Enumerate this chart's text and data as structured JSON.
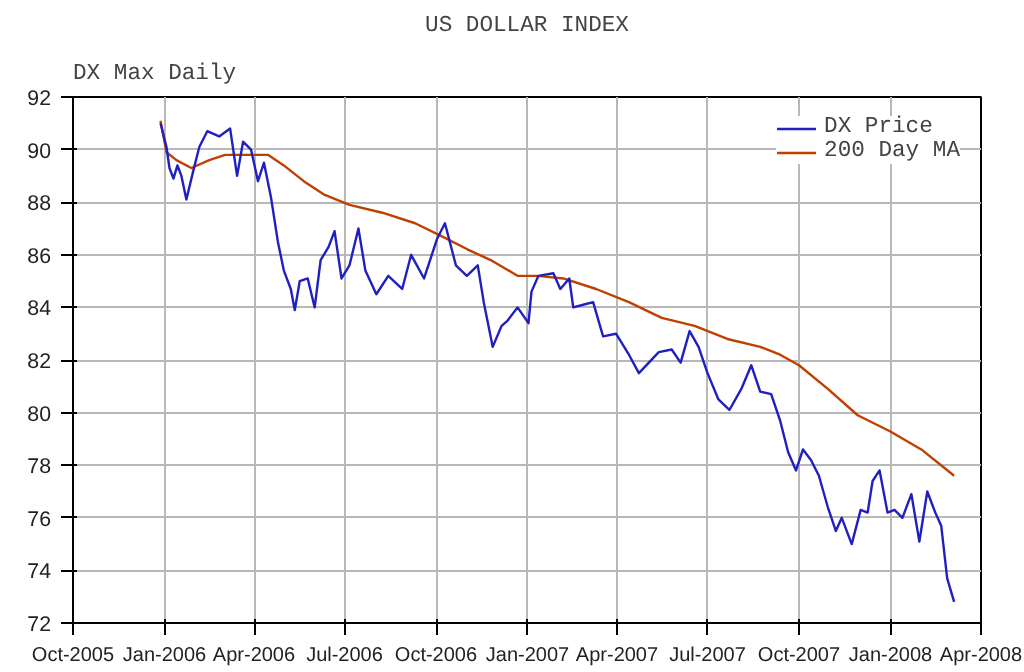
{
  "chart_data": {
    "type": "line",
    "title": "US DOLLAR INDEX",
    "annotations": [
      "DX Max Daily"
    ],
    "xlim": [
      "2005-10-01",
      "2008-04-01"
    ],
    "xticks": [
      {
        "value": "2005-10-01",
        "label": "Oct-2005"
      },
      {
        "value": "2006-01-01",
        "label": "Jan-2006"
      },
      {
        "value": "2006-04-01",
        "label": "Apr-2006"
      },
      {
        "value": "2006-07-01",
        "label": "Jul-2006"
      },
      {
        "value": "2006-10-01",
        "label": "Oct-2006"
      },
      {
        "value": "2007-01-01",
        "label": "Jan-2007"
      },
      {
        "value": "2007-04-01",
        "label": "Apr-2007"
      },
      {
        "value": "2007-07-01",
        "label": "Jul-2007"
      },
      {
        "value": "2007-10-01",
        "label": "Oct-2007"
      },
      {
        "value": "2008-01-01",
        "label": "Jan-2008"
      },
      {
        "value": "2008-04-01",
        "label": "Apr-2008"
      }
    ],
    "ylim": [
      72,
      92
    ],
    "yticks": [
      72,
      74,
      76,
      78,
      80,
      82,
      84,
      86,
      88,
      90,
      92
    ],
    "grid": true,
    "legend": "top right",
    "line_style": "solid",
    "marker": "none",
    "series": [
      {
        "name": "DX Price",
        "color": "#2020c0",
        "x": [
          "2005-12-28",
          "2006-01-03",
          "2006-01-06",
          "2006-01-10",
          "2006-01-14",
          "2006-01-18",
          "2006-01-23",
          "2006-01-30",
          "2006-02-05",
          "2006-02-13",
          "2006-02-25",
          "2006-03-08",
          "2006-03-15",
          "2006-03-21",
          "2006-03-29",
          "2006-04-05",
          "2006-04-11",
          "2006-04-18",
          "2006-04-25",
          "2006-05-01",
          "2006-05-08",
          "2006-05-12",
          "2006-05-17",
          "2006-05-25",
          "2006-06-01",
          "2006-06-07",
          "2006-06-15",
          "2006-06-21",
          "2006-06-28",
          "2006-07-06",
          "2006-07-15",
          "2006-07-22",
          "2006-08-02",
          "2006-08-14",
          "2006-08-28",
          "2006-09-06",
          "2006-09-19",
          "2006-10-02",
          "2006-10-10",
          "2006-10-21",
          "2006-11-01",
          "2006-11-12",
          "2006-11-18",
          "2006-11-27",
          "2006-12-06",
          "2006-12-12",
          "2006-12-22",
          "2007-01-02",
          "2007-01-05",
          "2007-01-12",
          "2007-01-27",
          "2007-02-03",
          "2007-02-12",
          "2007-02-16",
          "2007-02-26",
          "2007-03-08",
          "2007-03-18",
          "2007-03-31",
          "2007-04-13",
          "2007-04-23",
          "2007-05-03",
          "2007-05-13",
          "2007-05-26",
          "2007-06-04",
          "2007-06-13",
          "2007-06-22",
          "2007-07-01",
          "2007-07-12",
          "2007-07-23",
          "2007-08-04",
          "2007-08-14",
          "2007-08-23",
          "2007-09-03",
          "2007-09-12",
          "2007-09-20",
          "2007-09-28",
          "2007-10-05",
          "2007-10-13",
          "2007-10-21",
          "2007-10-30",
          "2007-11-07",
          "2007-11-13",
          "2007-11-23",
          "2007-12-02",
          "2007-12-09",
          "2007-12-14",
          "2007-12-21",
          "2007-12-29",
          "2008-01-05",
          "2008-01-13",
          "2008-01-22",
          "2008-01-30",
          "2008-02-07",
          "2008-02-15",
          "2008-02-21",
          "2008-02-27",
          "2008-03-05"
        ],
        "values": [
          91.0,
          90.1,
          89.3,
          88.9,
          89.4,
          89.0,
          88.1,
          89.2,
          90.1,
          90.7,
          90.5,
          90.8,
          89.0,
          90.3,
          90.0,
          88.8,
          89.5,
          88.2,
          86.5,
          85.4,
          84.7,
          83.9,
          85.0,
          85.1,
          84.0,
          85.8,
          86.3,
          86.9,
          85.1,
          85.6,
          87.0,
          85.4,
          84.5,
          85.2,
          84.7,
          86.0,
          85.1,
          86.6,
          87.2,
          85.6,
          85.2,
          85.6,
          84.2,
          82.5,
          83.3,
          83.5,
          84.0,
          83.4,
          84.6,
          85.2,
          85.3,
          84.7,
          85.1,
          84.0,
          84.1,
          84.2,
          82.9,
          83.0,
          82.2,
          81.5,
          81.9,
          82.3,
          82.4,
          81.9,
          83.1,
          82.5,
          81.5,
          80.5,
          80.1,
          80.9,
          81.8,
          80.8,
          80.7,
          79.7,
          78.5,
          77.8,
          78.6,
          78.2,
          77.6,
          76.4,
          75.5,
          76.0,
          75.0,
          76.3,
          76.2,
          77.4,
          77.8,
          76.2,
          76.3,
          76.0,
          76.9,
          75.1,
          77.0,
          76.2,
          75.7,
          73.7,
          72.8
        ]
      },
      {
        "name": "200 Day MA",
        "color": "#c04000",
        "x": [
          "2005-12-28",
          "2006-01-03",
          "2006-01-13",
          "2006-01-28",
          "2006-02-15",
          "2006-03-03",
          "2006-03-29",
          "2006-04-15",
          "2006-05-01",
          "2006-05-21",
          "2006-06-10",
          "2006-07-06",
          "2006-08-08",
          "2006-09-10",
          "2006-10-07",
          "2006-11-02",
          "2006-11-25",
          "2006-12-22",
          "2007-01-11",
          "2007-02-06",
          "2007-03-11",
          "2007-04-13",
          "2007-05-16",
          "2007-06-18",
          "2007-07-21",
          "2007-08-23",
          "2007-09-12",
          "2007-10-01",
          "2007-10-30",
          "2007-11-29",
          "2007-12-31",
          "2008-02-01",
          "2008-03-05"
        ],
        "values": [
          91.1,
          89.9,
          89.6,
          89.3,
          89.6,
          89.8,
          89.8,
          89.8,
          89.4,
          88.8,
          88.3,
          87.9,
          87.6,
          87.2,
          86.7,
          86.2,
          85.8,
          85.2,
          85.2,
          85.1,
          84.7,
          84.2,
          83.6,
          83.3,
          82.8,
          82.5,
          82.2,
          81.8,
          80.9,
          79.9,
          79.3,
          78.6,
          77.6
        ]
      }
    ]
  }
}
